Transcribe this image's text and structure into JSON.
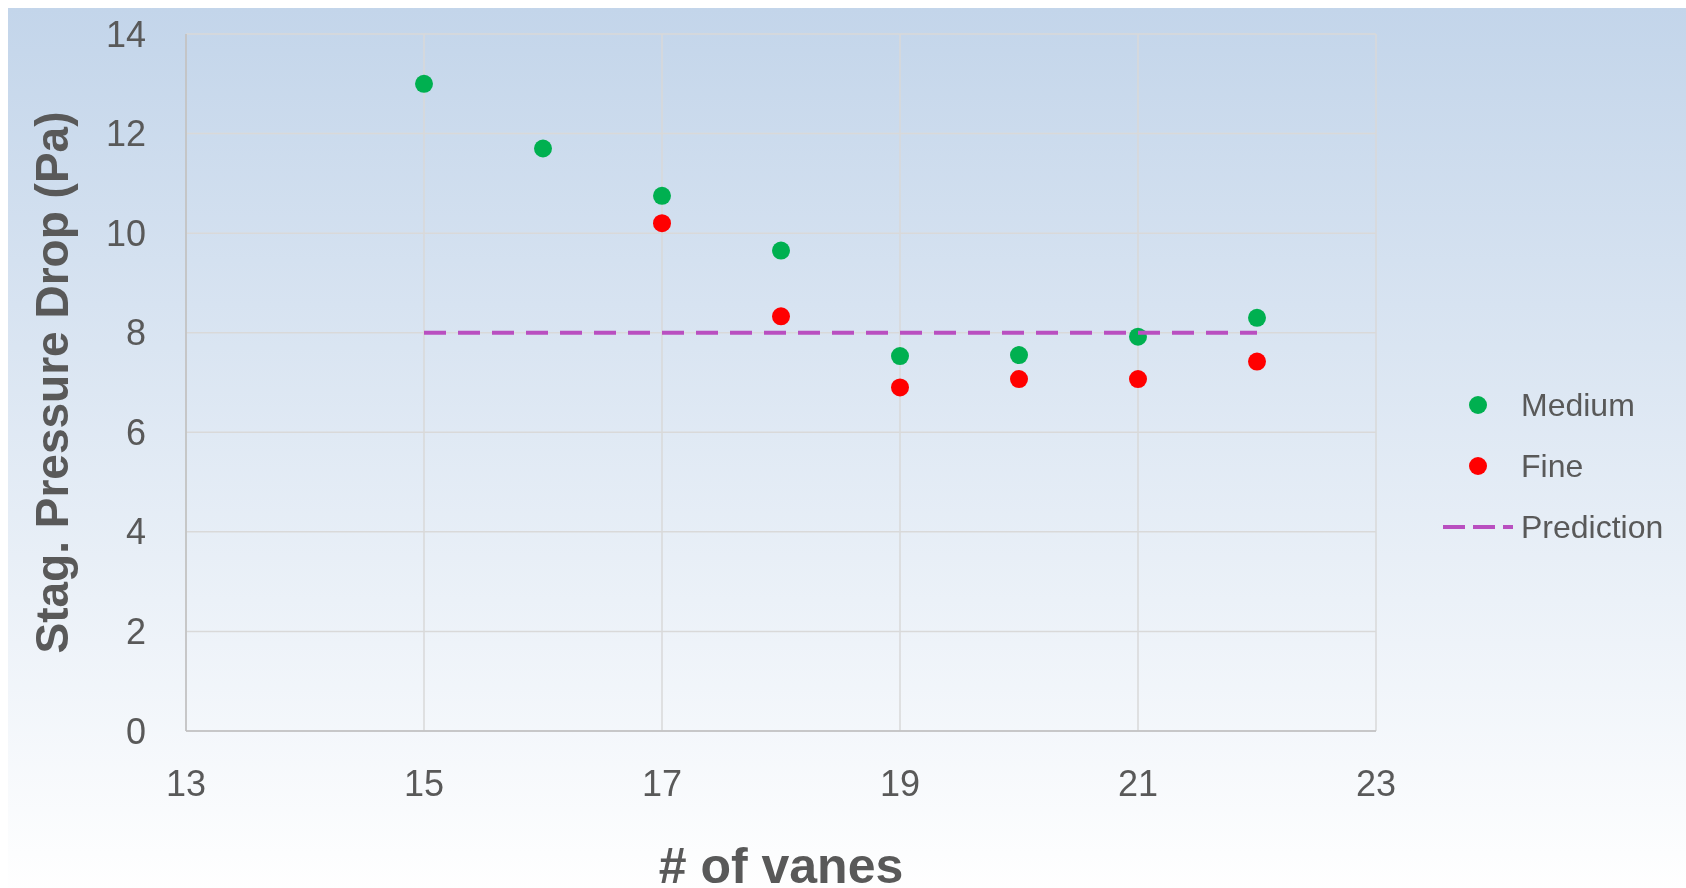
{
  "chart_data": {
    "type": "scatter",
    "xlabel": "# of vanes",
    "ylabel": "Stag. Pressure Drop (Pa)",
    "xlim": [
      13,
      23
    ],
    "xticks": [
      13,
      15,
      17,
      19,
      21,
      23
    ],
    "ylim": [
      0,
      14
    ],
    "yticks": [
      0,
      2,
      4,
      6,
      8,
      10,
      12,
      14
    ],
    "grid": true,
    "legend": "right",
    "series": [
      {
        "name": "Medium",
        "color": "#00b050",
        "marker": "circle",
        "x": [
          15,
          16,
          17,
          18,
          19,
          20,
          21,
          22
        ],
        "values": [
          13.0,
          11.7,
          10.75,
          9.65,
          7.53,
          7.55,
          7.92,
          8.3
        ]
      },
      {
        "name": "Fine",
        "color": "#ff0000",
        "marker": "circle",
        "x": [
          17,
          18,
          19,
          20,
          21,
          22
        ],
        "values": [
          10.2,
          8.33,
          6.9,
          7.07,
          7.07,
          7.42
        ]
      },
      {
        "name": "Prediction",
        "type": "line",
        "line_style": "dashed",
        "color": "#b94fc0",
        "x": [
          15,
          22
        ],
        "values": [
          8,
          8
        ]
      }
    ]
  }
}
